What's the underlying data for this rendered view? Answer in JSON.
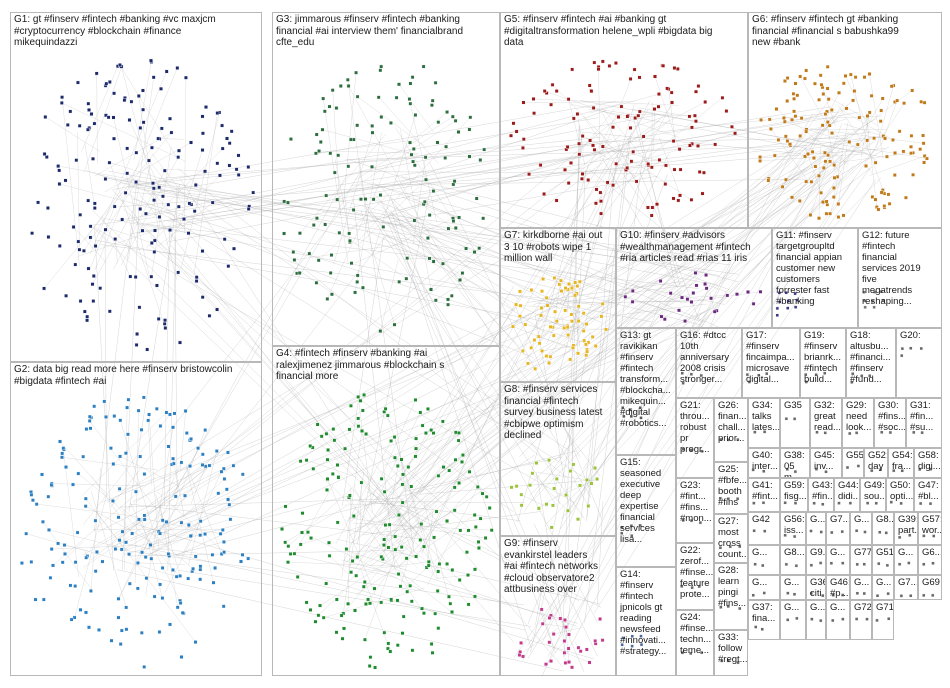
{
  "groups": [
    {
      "id": "G1",
      "label": "G1: gt #finserv #fintech #banking #vc maxjcm\n#cryptocurrency #blockchain #finance\nmikequindazzi",
      "color": "#1b2a6b",
      "nodes": 170
    },
    {
      "id": "G2",
      "label": "G2: data big read more here #finserv bristowcolin\n#bigdata #fintech #ai",
      "color": "#2c7fc1",
      "nodes": 190
    },
    {
      "id": "G3",
      "label": "G3: jimmarous #finserv #fintech #banking\nfinancial #ai interview them' financialbrand\ncfte_edu",
      "color": "#2d6e3e",
      "nodes": 130
    },
    {
      "id": "G4",
      "label": "G4: #fintech #finserv #banking #ai\nralexjimenez jimmarous #blockchain s\nfinancial more",
      "color": "#1f8a2e",
      "nodes": 190
    },
    {
      "id": "G5",
      "label": "G5: #finserv #fintech #ai #banking gt\n#digitaltransformation helene_wpli #bigdata big\ndata",
      "color": "#9b1b1b",
      "nodes": 120
    },
    {
      "id": "G6",
      "label": "G6: #finserv #fintech gt #banking\nfinancial #financial s babushka99\nnew #bank",
      "color": "#c07a1a",
      "nodes": 144
    },
    {
      "id": "G7",
      "label": "G7: kirkdborne #ai out\n3 10 #robots wipe 1\nmillion wall",
      "color": "#e6b623",
      "nodes": 70
    },
    {
      "id": "G8",
      "label": "G8: #finserv services\nfinancial #fintech\nsurvey business latest\n#cbipwe optimism\ndeclined",
      "color": "#9ac43a",
      "nodes": 26
    },
    {
      "id": "G9",
      "label": "G9: #finserv\nevankirstel leaders\n#ai #fintech networks\n#cloud observatore2\nattbusiness over",
      "color": "#c23a8c",
      "nodes": 30
    },
    {
      "id": "G10",
      "label": "G10: #finserv #advisors\n#wealthmanagement #fintech\n#ria articles read #rias 11 iris",
      "color": "#6b2a7e",
      "nodes": 26
    },
    {
      "id": "G11",
      "label": "G11: #finserv\ntargetgroupltd\nfinancial appian\ncustomer new\ncustomers\nforrester fast\n#banking",
      "color": "#3a3a8a",
      "nodes": 10
    },
    {
      "id": "G12",
      "label": "G12: future\n#fintech\nfinancial\nservices 2019\nfive\nmegatrends\nreshaping...",
      "color": "#7a7a7a",
      "nodes": 8
    },
    {
      "id": "G13",
      "label": "G13: gt\nravikikan\n#finserv\n#fintech\ntransform...\n#blockcha...\nmikequin...\n#digital\n#robotics...",
      "color": "#5a5a5a",
      "nodes": 6
    },
    {
      "id": "G14",
      "label": "G14:\n#finserv\n#fintech\njpnicols gt\nreading\nnewsfeed\n#innovati...\n#strategy...",
      "color": "#4a6a9a",
      "nodes": 6
    },
    {
      "id": "G15",
      "label": "G15:\nseasoned\nexecutive\ndeep\nexpertise\nfinancial\nservices\nlisa...",
      "color": "#6a6a6a",
      "nodes": 5
    },
    {
      "id": "G16",
      "label": "G16: #dtcc\n10th\nanniversary\n2008 crisis\nstronger...",
      "color": "#6a6a6a",
      "nodes": 4
    },
    {
      "id": "G17",
      "label": "G17:\n#finserv\nfincaimpa...\nmicrosave\ndigital...",
      "color": "#6a6a6a",
      "nodes": 4
    },
    {
      "id": "G19",
      "label": "G19:\n#finserv\nbrianrk...\n#fintech\nbuild...",
      "color": "#6a6a6a",
      "nodes": 4
    },
    {
      "id": "G18",
      "label": "G18:\naltusbu...\n#financi...\n#finserv\n#fund...",
      "color": "#6a6a6a",
      "nodes": 4
    },
    {
      "id": "G20",
      "label": "G20:",
      "color": "#6a6a6a",
      "nodes": 4
    },
    {
      "id": "G21",
      "label": "G21:\nthrou...\nrobust\npr\nprogr...",
      "color": "#6a6a6a",
      "nodes": 3
    },
    {
      "id": "G23",
      "label": "G23:\n#fint...\n#fins...\n#mon...",
      "color": "#6a6a6a",
      "nodes": 3
    },
    {
      "id": "G22",
      "label": "G22:\nzerof...\n#finse...\nfeature\nprote...",
      "color": "#6a6a6a",
      "nodes": 3
    },
    {
      "id": "G24",
      "label": "G24:\n#finse...\ntechn...\nteme...",
      "color": "#6a6a6a",
      "nodes": 3
    },
    {
      "id": "G26",
      "label": "G26:\nfinan...\nchall...\nprior...",
      "color": "#6a6a6a",
      "nodes": 3
    },
    {
      "id": "G25",
      "label": "G25:\n#fbfe...\nbooth\n#fins",
      "color": "#6a6a6a",
      "nodes": 3
    },
    {
      "id": "G27",
      "label": "G27:\nmost\ncross\ncount...",
      "color": "#6a6a6a",
      "nodes": 3
    },
    {
      "id": "G28",
      "label": "G28:\nlearn\npingi\n#fins...",
      "color": "#6a6a6a",
      "nodes": 3
    },
    {
      "id": "G33",
      "label": "G33:\nfollow\n#regt...",
      "color": "#6a6a6a",
      "nodes": 3
    },
    {
      "id": "G34",
      "label": "G34:\ntalks\nlates...",
      "color": "#6a6a6a",
      "nodes": 2
    },
    {
      "id": "G35",
      "label": "G35",
      "color": "#6a6a6a",
      "nodes": 2
    },
    {
      "id": "G32",
      "label": "G32:\ngreat\nread...",
      "color": "#6a6a6a",
      "nodes": 2
    },
    {
      "id": "G29",
      "label": "G29:\nneed\nlook...",
      "color": "#6a6a6a",
      "nodes": 2
    },
    {
      "id": "G30",
      "label": "G30:\n#fins...\n#soc...",
      "color": "#6a6a6a",
      "nodes": 2
    },
    {
      "id": "G31",
      "label": "G31:\n#fin...\n#su...",
      "color": "#6a6a6a",
      "nodes": 2
    },
    {
      "id": "G40",
      "label": "G40:\ninter...",
      "color": "#6a6a6a",
      "nodes": 2
    },
    {
      "id": "G38",
      "label": "G38:\n05 m...",
      "color": "#6a6a6a",
      "nodes": 2
    },
    {
      "id": "G45",
      "label": "G45:\ninv...",
      "color": "#6a6a6a",
      "nodes": 2
    },
    {
      "id": "G55",
      "label": "G55",
      "color": "#6a6a6a",
      "nodes": 2
    },
    {
      "id": "G52",
      "label": "G52:\nday",
      "color": "#6a6a6a",
      "nodes": 2
    },
    {
      "id": "G54",
      "label": "G54:\nfra...",
      "color": "#6a6a6a",
      "nodes": 2
    },
    {
      "id": "G58",
      "label": "G58:\ndigi...",
      "color": "#6a6a6a",
      "nodes": 2
    },
    {
      "id": "G41",
      "label": "G41:\n#fint...",
      "color": "#6a6a6a",
      "nodes": 2
    },
    {
      "id": "G59",
      "label": "G59:\nfisg...",
      "color": "#6a6a6a",
      "nodes": 2
    },
    {
      "id": "G43",
      "label": "G43:\n#fin...",
      "color": "#6a6a6a",
      "nodes": 2
    },
    {
      "id": "G44",
      "label": "G44:\ndidi...",
      "color": "#6a6a6a",
      "nodes": 2
    },
    {
      "id": "G49",
      "label": "G49:\nsou...",
      "color": "#6a6a6a",
      "nodes": 2
    },
    {
      "id": "G50",
      "label": "G50:\nopti...",
      "color": "#6a6a6a",
      "nodes": 2
    },
    {
      "id": "G47",
      "label": "G47:\n#bl...",
      "color": "#6a6a6a",
      "nodes": 2
    },
    {
      "id": "G42",
      "label": "G42",
      "color": "#6a6a6a",
      "nodes": 2
    },
    {
      "id": "G56",
      "label": "G56:\niss...",
      "color": "#6a6a6a",
      "nodes": 2
    },
    {
      "id": "Ga",
      "label": "G...",
      "color": "#6a6a6a",
      "nodes": 2
    },
    {
      "id": "G7b",
      "label": "G7...",
      "color": "#6a6a6a",
      "nodes": 2
    },
    {
      "id": "Gb",
      "label": "G...",
      "color": "#6a6a6a",
      "nodes": 2
    },
    {
      "id": "G8b",
      "label": "G8...",
      "color": "#6a6a6a",
      "nodes": 2
    },
    {
      "id": "G39",
      "label": "G39:\npart...",
      "color": "#6a6a6a",
      "nodes": 2
    },
    {
      "id": "G57",
      "label": "G57:\nwor...",
      "color": "#6a6a6a",
      "nodes": 2
    },
    {
      "id": "Gc",
      "label": "G...",
      "color": "#6a6a6a",
      "nodes": 2
    },
    {
      "id": "G8c",
      "label": "G8...",
      "color": "#6a6a6a",
      "nodes": 2
    },
    {
      "id": "G9b",
      "label": "G9...",
      "color": "#6a6a6a",
      "nodes": 2
    },
    {
      "id": "Gd",
      "label": "G...",
      "color": "#6a6a6a",
      "nodes": 2
    },
    {
      "id": "G77",
      "label": "G77",
      "color": "#6a6a6a",
      "nodes": 2
    },
    {
      "id": "G51",
      "label": "G51",
      "color": "#6a6a6a",
      "nodes": 2
    },
    {
      "id": "Ge",
      "label": "G...",
      "color": "#6a6a6a",
      "nodes": 2
    },
    {
      "id": "G6b",
      "label": "G6...",
      "color": "#6a6a6a",
      "nodes": 2
    },
    {
      "id": "Gf",
      "label": "G...",
      "color": "#6a6a6a",
      "nodes": 2
    },
    {
      "id": "Gg",
      "label": "G...",
      "color": "#6a6a6a",
      "nodes": 2
    },
    {
      "id": "G36",
      "label": "G36:\nciti",
      "color": "#6a6a6a",
      "nodes": 2
    },
    {
      "id": "G46",
      "label": "G46:\n#p...",
      "color": "#6a6a6a",
      "nodes": 2
    },
    {
      "id": "Gh",
      "label": "G...",
      "color": "#6a6a6a",
      "nodes": 2
    },
    {
      "id": "Gi",
      "label": "G...",
      "color": "#6a6a6a",
      "nodes": 2
    },
    {
      "id": "G7c",
      "label": "G7...",
      "color": "#6a6a6a",
      "nodes": 2
    },
    {
      "id": "G69",
      "label": "G69",
      "color": "#6a6a6a",
      "nodes": 2
    },
    {
      "id": "G37",
      "label": "G37:\nfina...",
      "color": "#6a6a6a",
      "nodes": 2
    },
    {
      "id": "Gj",
      "label": "G...",
      "color": "#6a6a6a",
      "nodes": 2
    },
    {
      "id": "Gk",
      "label": "G...",
      "color": "#6a6a6a",
      "nodes": 2
    },
    {
      "id": "Gl",
      "label": "G...",
      "color": "#6a6a6a",
      "nodes": 2
    },
    {
      "id": "G72",
      "label": "G72",
      "color": "#6a6a6a",
      "nodes": 2
    },
    {
      "id": "G71",
      "label": "G71",
      "color": "#6a6a6a",
      "nodes": 2
    }
  ]
}
